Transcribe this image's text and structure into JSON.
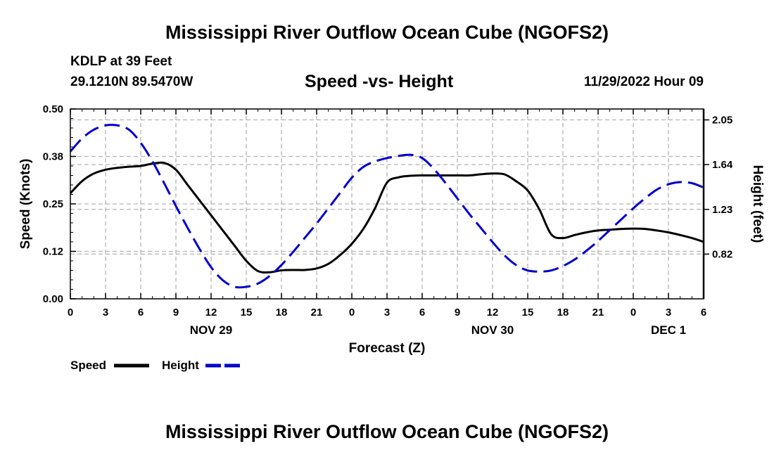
{
  "page": {
    "title": "Mississippi River Outflow Ocean Cube (NGOFS2)",
    "title_repeat": "Mississippi River Outflow Ocean Cube (NGOFS2)",
    "station": "KDLP at 39 Feet",
    "coords": "29.1210N  89.5470W",
    "subtitle": "Speed -vs- Height",
    "datetime": "11/29/2022 Hour 09"
  },
  "chart_data": {
    "type": "line",
    "xlabel": "Forecast (Z)",
    "xlim": [
      0,
      54
    ],
    "x_ticks": [
      0,
      3,
      6,
      9,
      12,
      15,
      18,
      21,
      24,
      27,
      30,
      33,
      36,
      39,
      42,
      45,
      48,
      51,
      54
    ],
    "x_tick_labels": [
      "0",
      "3",
      "6",
      "9",
      "12",
      "15",
      "18",
      "21",
      "0",
      "3",
      "6",
      "9",
      "12",
      "15",
      "18",
      "21",
      "0",
      "3",
      "6"
    ],
    "date_labels": [
      {
        "x": 12,
        "label": "NOV 29"
      },
      {
        "x": 36,
        "label": "NOV 30"
      },
      {
        "x": 51,
        "label": "DEC 1"
      }
    ],
    "y_left": {
      "label": "Speed (Knots)",
      "lim": [
        0,
        0.5
      ],
      "ticks": [
        0,
        0.125,
        0.25,
        0.375,
        0.5
      ],
      "tick_labels": [
        "0.00",
        "0.12",
        "0.25",
        "0.38",
        "0.50"
      ]
    },
    "y_right": {
      "label": "Height (feet)",
      "lim": [
        0.41,
        2.15
      ],
      "ticks": [
        0.82,
        1.23,
        1.64,
        2.05
      ],
      "tick_labels": [
        "0.82",
        "1.23",
        "1.64",
        "2.05"
      ],
      "color": "#0000cc"
    },
    "grid": true,
    "series": [
      {
        "name": "Speed",
        "axis": "left",
        "color": "#000000",
        "style": "solid",
        "x": [
          0,
          1,
          2,
          3,
          4,
          5,
          6,
          7,
          8,
          9,
          10,
          11,
          12,
          13,
          14,
          15,
          16,
          17,
          18,
          19,
          20,
          21,
          22,
          23,
          24,
          25,
          26,
          27,
          28,
          29,
          30,
          31,
          32,
          33,
          34,
          35,
          36,
          37,
          38,
          39,
          40,
          41,
          42,
          43,
          44,
          45,
          46,
          47,
          48,
          49,
          50,
          51,
          52,
          53,
          54
        ],
        "values": [
          0.278,
          0.31,
          0.33,
          0.34,
          0.345,
          0.348,
          0.35,
          0.356,
          0.358,
          0.34,
          0.3,
          0.26,
          0.22,
          0.18,
          0.14,
          0.1,
          0.073,
          0.07,
          0.075,
          0.076,
          0.076,
          0.08,
          0.092,
          0.115,
          0.145,
          0.185,
          0.24,
          0.306,
          0.32,
          0.324,
          0.325,
          0.325,
          0.325,
          0.325,
          0.325,
          0.328,
          0.33,
          0.328,
          0.31,
          0.285,
          0.235,
          0.17,
          0.16,
          0.168,
          0.175,
          0.18,
          0.182,
          0.184,
          0.185,
          0.184,
          0.18,
          0.175,
          0.168,
          0.16,
          0.15
        ]
      },
      {
        "name": "Height",
        "axis": "right",
        "color": "#0000cc",
        "style": "dashed",
        "x": [
          0,
          1,
          2,
          3,
          4,
          5,
          6,
          7,
          8,
          9,
          10,
          11,
          12,
          13,
          14,
          15,
          16,
          17,
          18,
          19,
          20,
          21,
          22,
          23,
          24,
          25,
          26,
          27,
          28,
          29,
          30,
          31,
          32,
          33,
          34,
          35,
          36,
          37,
          38,
          39,
          40,
          41,
          42,
          43,
          44,
          45,
          46,
          47,
          48,
          49,
          50,
          51,
          52,
          53,
          54
        ],
        "values": [
          1.76,
          1.88,
          1.96,
          2.0,
          2.0,
          1.96,
          1.84,
          1.67,
          1.47,
          1.26,
          1.06,
          0.87,
          0.7,
          0.58,
          0.52,
          0.52,
          0.55,
          0.62,
          0.72,
          0.84,
          0.97,
          1.1,
          1.24,
          1.38,
          1.52,
          1.62,
          1.67,
          1.7,
          1.72,
          1.73,
          1.7,
          1.6,
          1.47,
          1.33,
          1.19,
          1.06,
          0.93,
          0.81,
          0.72,
          0.67,
          0.66,
          0.67,
          0.71,
          0.77,
          0.85,
          0.94,
          1.04,
          1.14,
          1.24,
          1.33,
          1.41,
          1.46,
          1.48,
          1.47,
          1.43
        ]
      }
    ],
    "legend": [
      {
        "label": "Speed",
        "color": "#000000",
        "style": "solid"
      },
      {
        "label": "Height",
        "color": "#0000cc",
        "style": "dashed"
      }
    ]
  }
}
